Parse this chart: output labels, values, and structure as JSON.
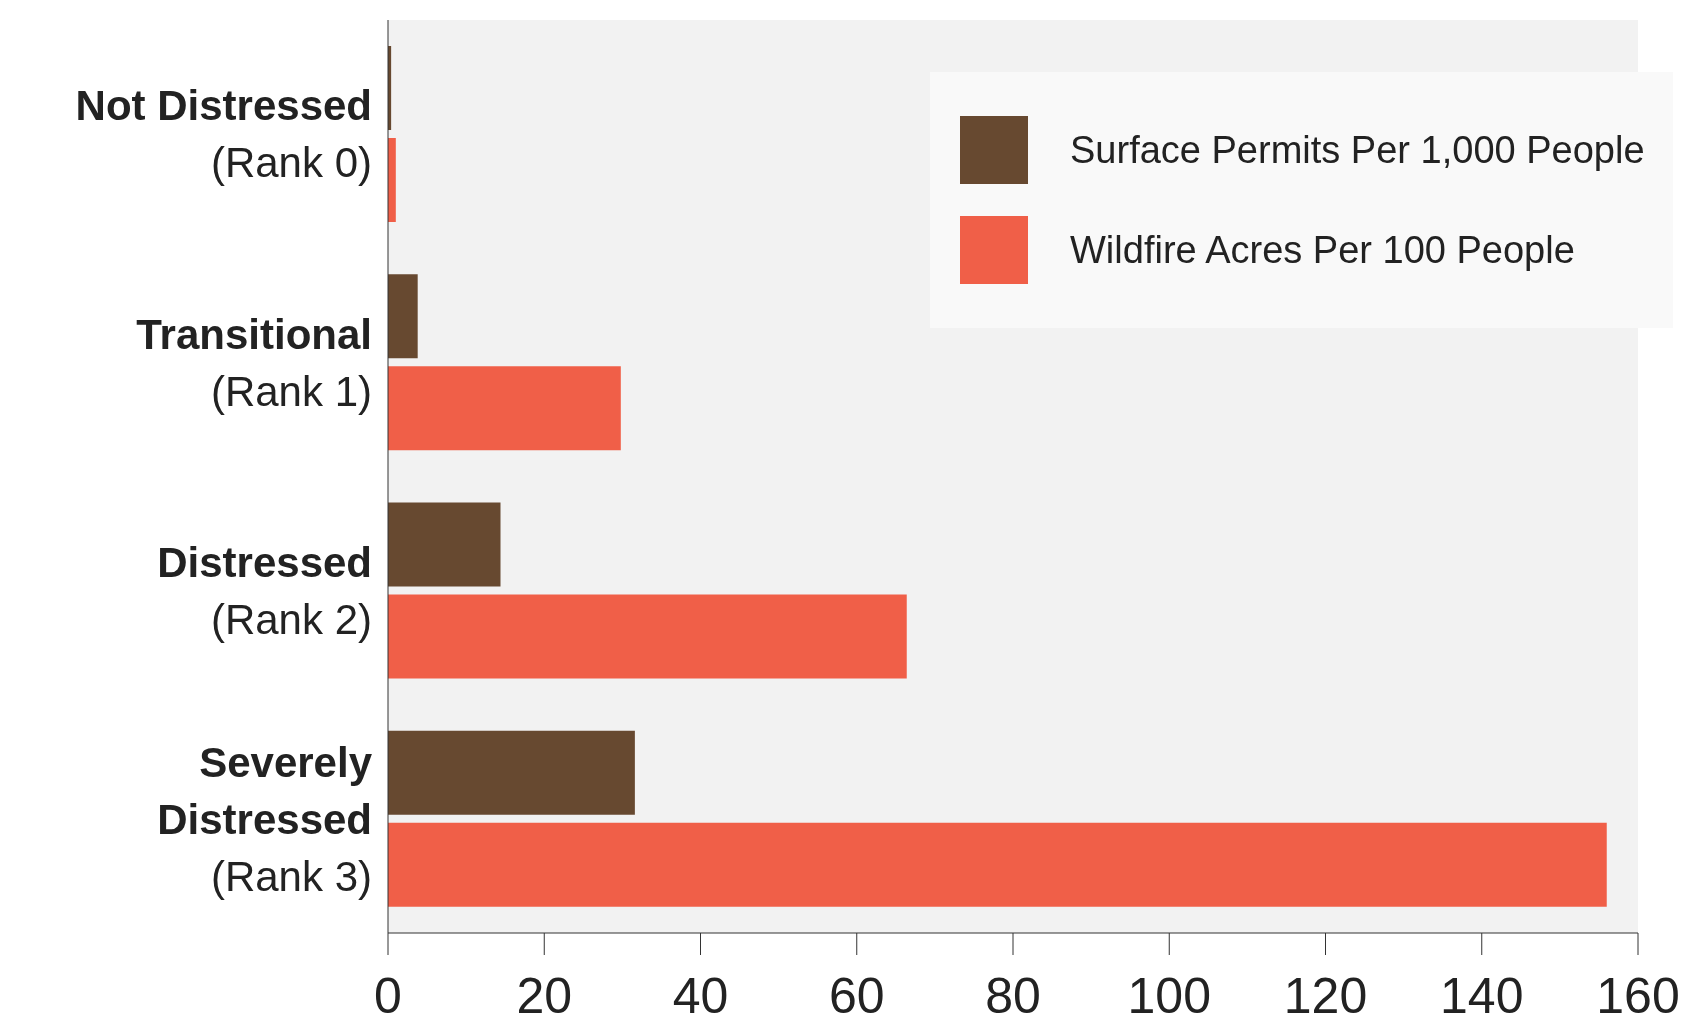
{
  "chart_data": {
    "type": "bar",
    "orientation": "horizontal",
    "categories": [
      "Not Distressed\n(Rank 0)",
      "Transitional\n(Rank 1)",
      "Distressed\n(Rank 2)",
      "Severely\nDistressed\n(Rank 3)"
    ],
    "series": [
      {
        "name": "Surface Permits Per 1,000 People",
        "color": "#674930",
        "values": [
          0.4,
          3.8,
          14.4,
          31.6
        ]
      },
      {
        "name": "Wildfire Acres Per 100 People",
        "color": "#f05f48",
        "values": [
          1,
          29.8,
          66.4,
          156
        ]
      }
    ],
    "xlim": [
      0,
      160
    ],
    "xticks": [
      0,
      20,
      40,
      60,
      80,
      100,
      120,
      140,
      160
    ],
    "grid": false,
    "legend": "top right"
  }
}
